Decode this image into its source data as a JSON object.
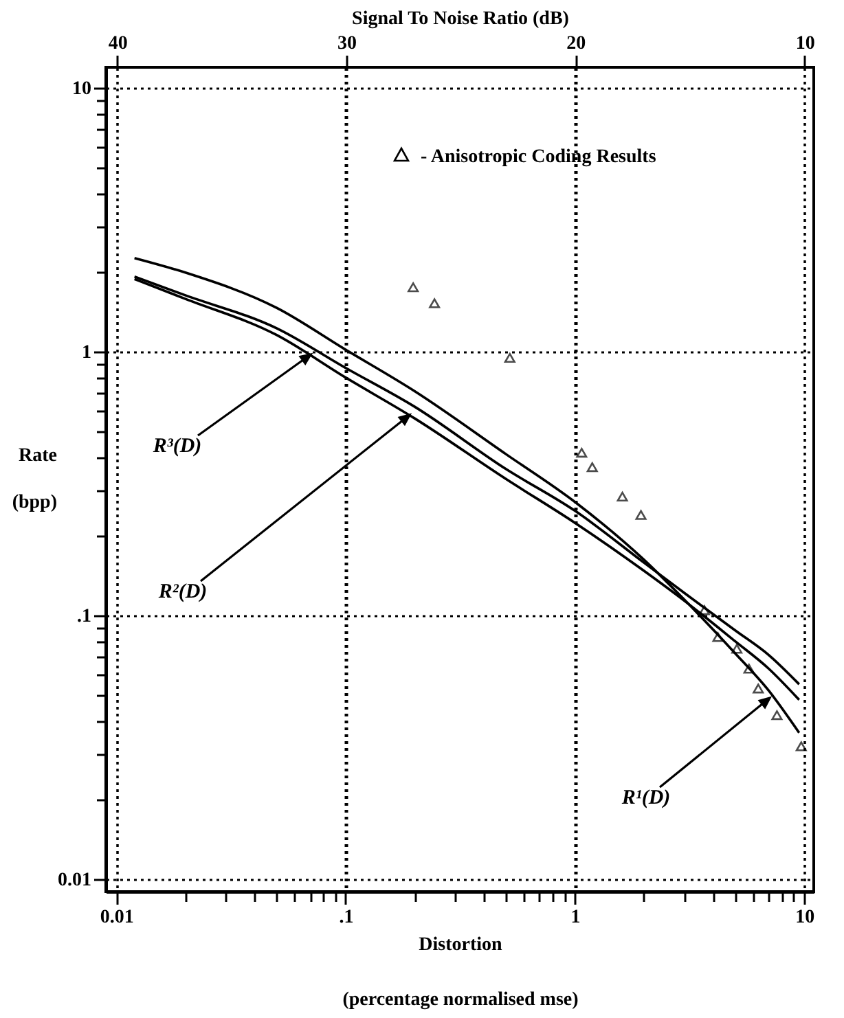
{
  "chart_data": {
    "type": "line",
    "xlabel": "Distortion\n(percentage normalised mse)",
    "ylabel": "Rate\n(bpp)",
    "x2label": "Signal To Noise Ratio (dB)",
    "log": "xy",
    "grid": true,
    "legend": "top right",
    "xlim": [
      0.009,
      11
    ],
    "ylim": [
      0.009,
      12
    ],
    "x2lim": [
      40.5,
      9.6
    ],
    "xticks": [
      {
        "value": 0.01,
        "label": "0.01"
      },
      {
        "value": 0.02,
        "label": null
      },
      {
        "value": 0.03,
        "label": null
      },
      {
        "value": 0.04,
        "label": null
      },
      {
        "value": 0.05,
        "label": null
      },
      {
        "value": 0.06,
        "label": null
      },
      {
        "value": 0.07,
        "label": null
      },
      {
        "value": 0.08,
        "label": null
      },
      {
        "value": 0.09,
        "label": null
      },
      {
        "value": 0.1,
        "label": ".1"
      },
      {
        "value": 0.2,
        "label": null
      },
      {
        "value": 0.3,
        "label": null
      },
      {
        "value": 0.4,
        "label": null
      },
      {
        "value": 0.5,
        "label": null
      },
      {
        "value": 0.6,
        "label": null
      },
      {
        "value": 0.7,
        "label": null
      },
      {
        "value": 0.8,
        "label": null
      },
      {
        "value": 0.9,
        "label": null
      },
      1,
      {
        "value": 2,
        "label": null
      },
      {
        "value": 3,
        "label": null
      },
      {
        "value": 4,
        "label": null
      },
      {
        "value": 5,
        "label": null
      },
      {
        "value": 6,
        "label": null
      },
      {
        "value": 7,
        "label": null
      },
      {
        "value": 8,
        "label": null
      },
      {
        "value": 9,
        "label": null
      },
      10
    ],
    "yticks": [
      {
        "value": 0.01,
        "label": "0.01"
      },
      {
        "value": 0.02,
        "label": null
      },
      {
        "value": 0.03,
        "label": null
      },
      {
        "value": 0.04,
        "label": null
      },
      {
        "value": 0.05,
        "label": null
      },
      {
        "value": 0.06,
        "label": null
      },
      {
        "value": 0.07,
        "label": null
      },
      {
        "value": 0.08,
        "label": null
      },
      {
        "value": 0.09,
        "label": null
      },
      {
        "value": 0.1,
        "label": ".1"
      },
      {
        "value": 0.2,
        "label": null
      },
      {
        "value": 0.3,
        "label": null
      },
      {
        "value": 0.4,
        "label": null
      },
      {
        "value": 0.5,
        "label": null
      },
      {
        "value": 0.6,
        "label": null
      },
      {
        "value": 0.7,
        "label": null
      },
      {
        "value": 0.8,
        "label": null
      },
      {
        "value": 0.9,
        "label": null
      },
      1,
      {
        "value": 2,
        "label": null
      },
      {
        "value": 3,
        "label": null
      },
      {
        "value": 4,
        "label": null
      },
      {
        "value": 5,
        "label": null
      },
      {
        "value": 6,
        "label": null
      },
      {
        "value": 7,
        "label": null
      },
      {
        "value": 8,
        "label": null
      },
      {
        "value": 9,
        "label": null
      },
      10
    ],
    "x2ticks": [
      40,
      30,
      20,
      10
    ],
    "x": [
      0.012,
      0.02,
      0.05,
      0.1,
      0.2,
      0.5,
      1,
      2,
      3,
      5,
      7,
      9.5
    ],
    "series": [
      {
        "color": "#000000",
        "values": [
          2.27,
          2.0,
          1.47,
          1.02,
          0.71,
          0.41,
          0.27,
          0.163,
          0.115,
          0.072,
          0.052,
          0.036
        ]
      },
      {
        "color": "#000000",
        "values": [
          1.93,
          1.64,
          1.23,
          0.87,
          0.62,
          0.36,
          0.25,
          0.159,
          0.122,
          0.088,
          0.071,
          0.055
        ]
      },
      {
        "color": "#000000",
        "values": [
          1.89,
          1.59,
          1.16,
          0.8,
          0.56,
          0.33,
          0.225,
          0.148,
          0.114,
          0.08,
          0.063,
          0.048
        ]
      },
      {
        "type": "scatter",
        "name": "- Anisotropic Coding Results",
        "color": "#000000",
        "marker": "triangle",
        "x": [
          0.197,
          0.244,
          0.52,
          1.07,
          1.19,
          1.61,
          1.94,
          3.67,
          4.2,
          5.08,
          5.74,
          6.3,
          7.6,
          9.7
        ],
        "values": [
          1.76,
          1.53,
          0.95,
          0.415,
          0.366,
          0.283,
          0.241,
          0.105,
          0.083,
          0.075,
          0.063,
          0.053,
          0.042,
          0.032
        ]
      }
    ],
    "annotations": [
      "R³(D)",
      "R²(D)",
      "R¹(D)"
    ]
  }
}
